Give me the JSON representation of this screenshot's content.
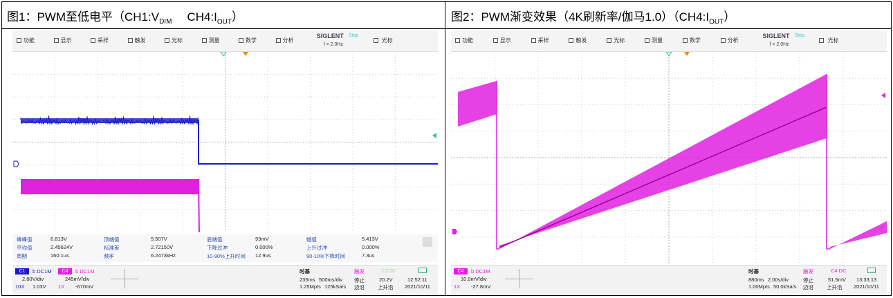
{
  "figures": [
    {
      "title": [
        "图1：PWM至低电平（CH1:V",
        "DIM",
        "CH4:I",
        "OUT",
        "）"
      ],
      "toolbar": [
        "功能",
        "显示",
        "采样",
        "触发",
        "光标",
        "测量",
        "数学",
        "分析"
      ],
      "brand": "SIGLENT",
      "status": "Stop",
      "freq": "f < 2.0Hz",
      "cursor": "光标",
      "measurements": [
        [
          "峰峰值",
          "6.813V",
          "顶端值",
          "5.507V",
          "底端值",
          "93mV",
          "幅值",
          "5.413V"
        ],
        [
          "平均值",
          "2.45624V",
          "标准差",
          "2.72150V",
          "下降过冲",
          "0.000%",
          "上升过冲",
          "0.000%"
        ],
        [
          "周期",
          "160.1us",
          "频率",
          "6.2473kHz",
          "10-90%上升时间",
          "12.9us",
          "90-10%下降时间",
          "7.3us"
        ]
      ],
      "channels": [
        {
          "name": "C1",
          "coupling": "b DC1M",
          "scale": "2.80V/div",
          "probe": "10X",
          "offset": "1.03V"
        },
        {
          "name": "C4",
          "coupling": "b DC1M",
          "scale": "245mV/div",
          "probe": "1X",
          "offset": "-670mV"
        }
      ],
      "timebase": {
        "label": "时基",
        "delay": "235ms",
        "scale": "500ms/div",
        "points": "1.25Mpts",
        "rate": "125kSa/s"
      },
      "trigger": {
        "label": "触发",
        "source": "C2DC",
        "state": "停止",
        "level": "20.2V",
        "type": "边沿",
        "slope": "上升沿"
      },
      "time": "12:52:11",
      "date": "2021/10/11"
    },
    {
      "title": [
        "图2：PWM渐变效果（4K刷新率/伽马1.0）（CH4:I",
        "OUT",
        "）"
      ],
      "toolbar": [
        "功能",
        "显示",
        "采样",
        "触发",
        "光标",
        "测量",
        "数学",
        "分析"
      ],
      "brand": "SIGLENT",
      "status": "Stop",
      "freq": "f < 2.0Hz",
      "cursor": "光标",
      "channels": [
        {
          "name": "C4",
          "coupling": "b DC1M",
          "scale": "10.0mV/div",
          "probe": "1X",
          "offset": "-27.8mV"
        }
      ],
      "timebase": {
        "label": "时基",
        "delay": "880ms",
        "scale": "2.00s/div",
        "points": "1.00Mpts",
        "rate": "50.0kSa/s"
      },
      "trigger": {
        "label": "触发",
        "source": "C4 DC",
        "state": "停止",
        "level": "51.5mV",
        "type": "边沿",
        "slope": "上升沿"
      },
      "time": "13:33:13",
      "date": "2021/10/11"
    }
  ]
}
